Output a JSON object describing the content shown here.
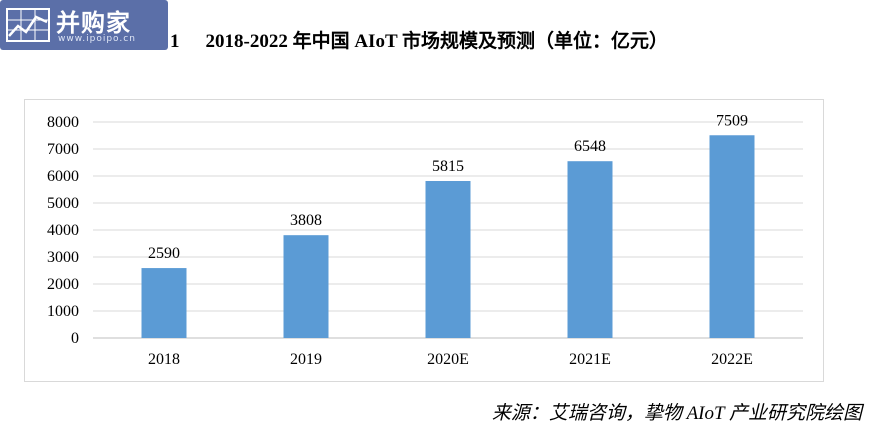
{
  "logo": {
    "name": "并购家",
    "url_text": "www.ipoipo.cn"
  },
  "figure": {
    "number": "1",
    "title": "2018-2022 年中国 AIoT 市场规模及预测（单位：亿元）"
  },
  "source": "来源：艾瑞咨询，挚物 AIoT 产业研究院绘图",
  "colors": {
    "bar": "#5b9bd5",
    "logo_bg": "#5b6fa8"
  },
  "chart_data": {
    "type": "bar",
    "categories": [
      "2018",
      "2019",
      "2020E",
      "2021E",
      "2022E"
    ],
    "values": [
      2590,
      3808,
      5815,
      6548,
      7509
    ],
    "data_labels": [
      "2590",
      "3808",
      "5815",
      "6548",
      "7509"
    ],
    "title": "",
    "xlabel": "",
    "ylabel": "",
    "ylim": [
      0,
      8000
    ],
    "yticks": [
      0,
      1000,
      2000,
      3000,
      4000,
      5000,
      6000,
      7000,
      8000
    ],
    "grid": true,
    "legend": "none"
  }
}
